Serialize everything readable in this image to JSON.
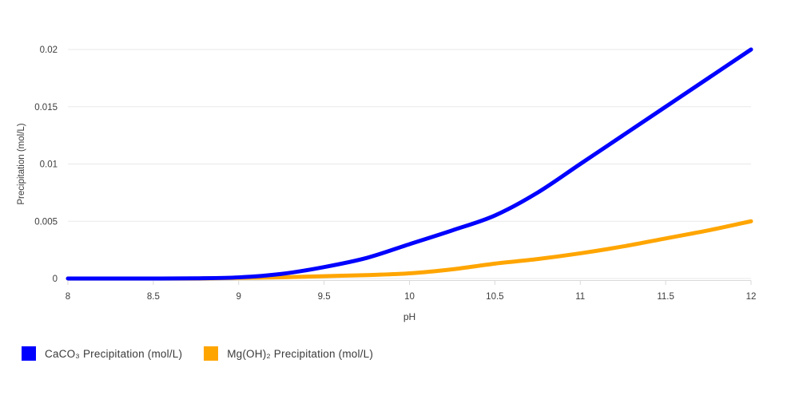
{
  "chart": {
    "background_color": "#ffffff",
    "grid_color": "#e9e9e9",
    "axis_line_color": "#d9d9d9",
    "tick_text_color": "#3d3d3d",
    "axis_title_color": "#3a3a3a",
    "legend_text_color": "#3a3a3a"
  },
  "chart_data": {
    "type": "line",
    "title": "",
    "xlabel": "pH",
    "ylabel": "Precipitation (mol/L)",
    "xlim": [
      8,
      12
    ],
    "ylim": [
      0,
      0.02
    ],
    "x_ticks": [
      8,
      8.5,
      9,
      9.5,
      10,
      10.5,
      11,
      11.5,
      12
    ],
    "x_tick_labels": [
      "8",
      "8.5",
      "9",
      "9.5",
      "10",
      "10.5",
      "11",
      "11.5",
      "12"
    ],
    "y_ticks": [
      0,
      0.005,
      0.01,
      0.015,
      0.02
    ],
    "y_tick_labels": [
      "0",
      "0.005",
      "0.01",
      "0.015",
      "0.02"
    ],
    "grid": "horizontal",
    "legend_position": "bottom-left",
    "x": [
      8,
      8.25,
      8.5,
      8.75,
      9,
      9.25,
      9.5,
      9.75,
      10,
      10.25,
      10.5,
      10.75,
      11,
      11.25,
      11.5,
      11.75,
      12
    ],
    "series": [
      {
        "name": "Mg(OH)₂ Precipitation (mol/L)",
        "color": "#ffa500",
        "values": [
          0,
          0,
          0,
          0,
          5e-05,
          0.0001,
          0.0002,
          0.0003,
          0.00045,
          0.0008,
          0.0013,
          0.0017,
          0.0022,
          0.0028,
          0.0035,
          0.0042,
          0.005
        ]
      },
      {
        "name": "CaCO₃ Precipitation (mol/L)",
        "color": "#0000ff",
        "values": [
          0,
          0,
          0,
          2e-05,
          0.0001,
          0.0004,
          0.001,
          0.0018,
          0.003,
          0.0042,
          0.0055,
          0.0075,
          0.01,
          0.0125,
          0.015,
          0.0175,
          0.02
        ]
      }
    ],
    "legend_order": [
      1,
      0
    ]
  }
}
